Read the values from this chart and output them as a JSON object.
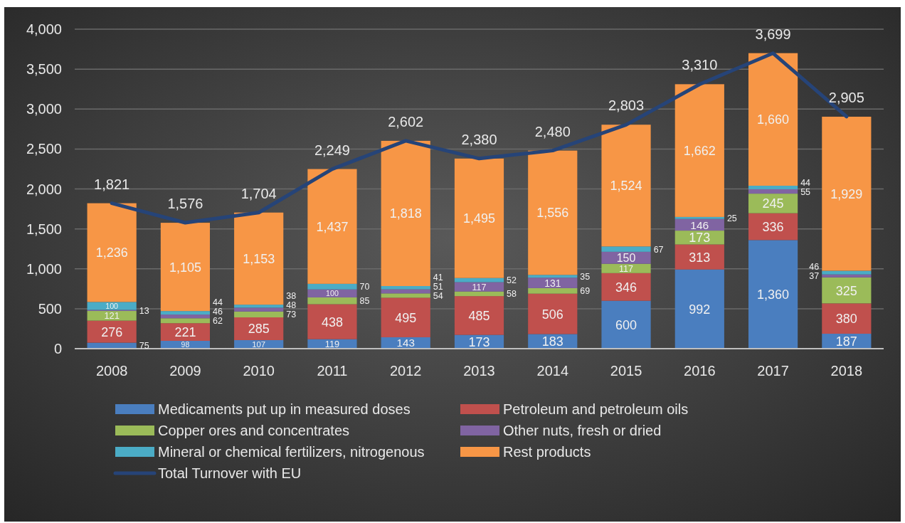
{
  "chart_data": {
    "type": "bar",
    "stacked": true,
    "categories": [
      "2008",
      "2009",
      "2010",
      "2011",
      "2012",
      "2013",
      "2014",
      "2015",
      "2016",
      "2017",
      "2018"
    ],
    "series": [
      {
        "name": "Medicaments put up in measured doses",
        "color": "#4a7ebf",
        "values": [
          75,
          98,
          107,
          119,
          143,
          173,
          183,
          600,
          992,
          1360,
          187
        ],
        "value_labels": [
          "75",
          "98",
          "107",
          "119",
          "143",
          "173",
          "183",
          "600",
          "992",
          "1,360",
          "187"
        ]
      },
      {
        "name": "Petroleum and petroleum oils",
        "color": "#c0504d",
        "values": [
          276,
          221,
          285,
          438,
          495,
          485,
          506,
          346,
          313,
          336,
          380
        ],
        "value_labels": [
          "276",
          "221",
          "285",
          "438",
          "495",
          "485",
          "506",
          "346",
          "313",
          "336",
          "380"
        ]
      },
      {
        "name": "Copper ores and concentrates",
        "color": "#9bbb59",
        "values": [
          121,
          62,
          73,
          85,
          54,
          58,
          69,
          117,
          173,
          245,
          325
        ],
        "value_labels": [
          "121",
          "62",
          "73",
          "85",
          "54",
          "58",
          "69",
          "117",
          "173",
          "245",
          "325"
        ]
      },
      {
        "name": "Other nuts, fresh or dried",
        "color": "#8064a2",
        "values": [
          13,
          46,
          48,
          100,
          51,
          117,
          131,
          150,
          146,
          55,
          37
        ],
        "value_labels": [
          "13",
          "46",
          "48",
          "100",
          "51",
          "117",
          "131",
          "150",
          "146",
          "55",
          "37"
        ]
      },
      {
        "name": "Mineral or chemical fertilizers, nitrogenous",
        "color": "#4bacc6",
        "values": [
          100,
          44,
          38,
          70,
          41,
          52,
          35,
          67,
          25,
          44,
          46
        ],
        "value_labels": [
          "100",
          "44",
          "38",
          "70",
          "41",
          "52",
          "35",
          "67",
          "25",
          "44",
          "46"
        ]
      },
      {
        "name": "Rest products",
        "color": "#f79646",
        "values": [
          1236,
          1105,
          1153,
          1437,
          1818,
          1495,
          1556,
          1524,
          1662,
          1660,
          1929
        ],
        "value_labels": [
          "1,236",
          "1,105",
          "1,153",
          "1,437",
          "1,818",
          "1,495",
          "1,556",
          "1,524",
          "1,662",
          "1,660",
          "1,929"
        ]
      },
      {
        "name": "Total Turnover with EU",
        "type": "line",
        "color": "#264478",
        "values": [
          1821,
          1576,
          1704,
          2249,
          2602,
          2380,
          2480,
          2803,
          3310,
          3699,
          2905
        ],
        "value_labels": [
          "1,821",
          "1,576",
          "1,704",
          "2,249",
          "2,602",
          "2,380",
          "2,480",
          "2,803",
          "3,310",
          "3,699",
          "2,905"
        ]
      }
    ],
    "ylim": [
      0,
      4000
    ],
    "yticks": [
      0,
      500,
      {
        "value": 1000,
        "label": "1,000"
      },
      {
        "value": 1500,
        "label": "1,500"
      },
      {
        "value": 2000,
        "label": "2,000"
      },
      {
        "value": 2500,
        "label": "2,500"
      },
      {
        "value": 3000,
        "label": "3,000"
      },
      {
        "value": 3500,
        "label": "3,500"
      },
      {
        "value": 4000,
        "label": "4,000"
      }
    ],
    "grid": "y",
    "legend": "bottom",
    "marker": "none"
  }
}
